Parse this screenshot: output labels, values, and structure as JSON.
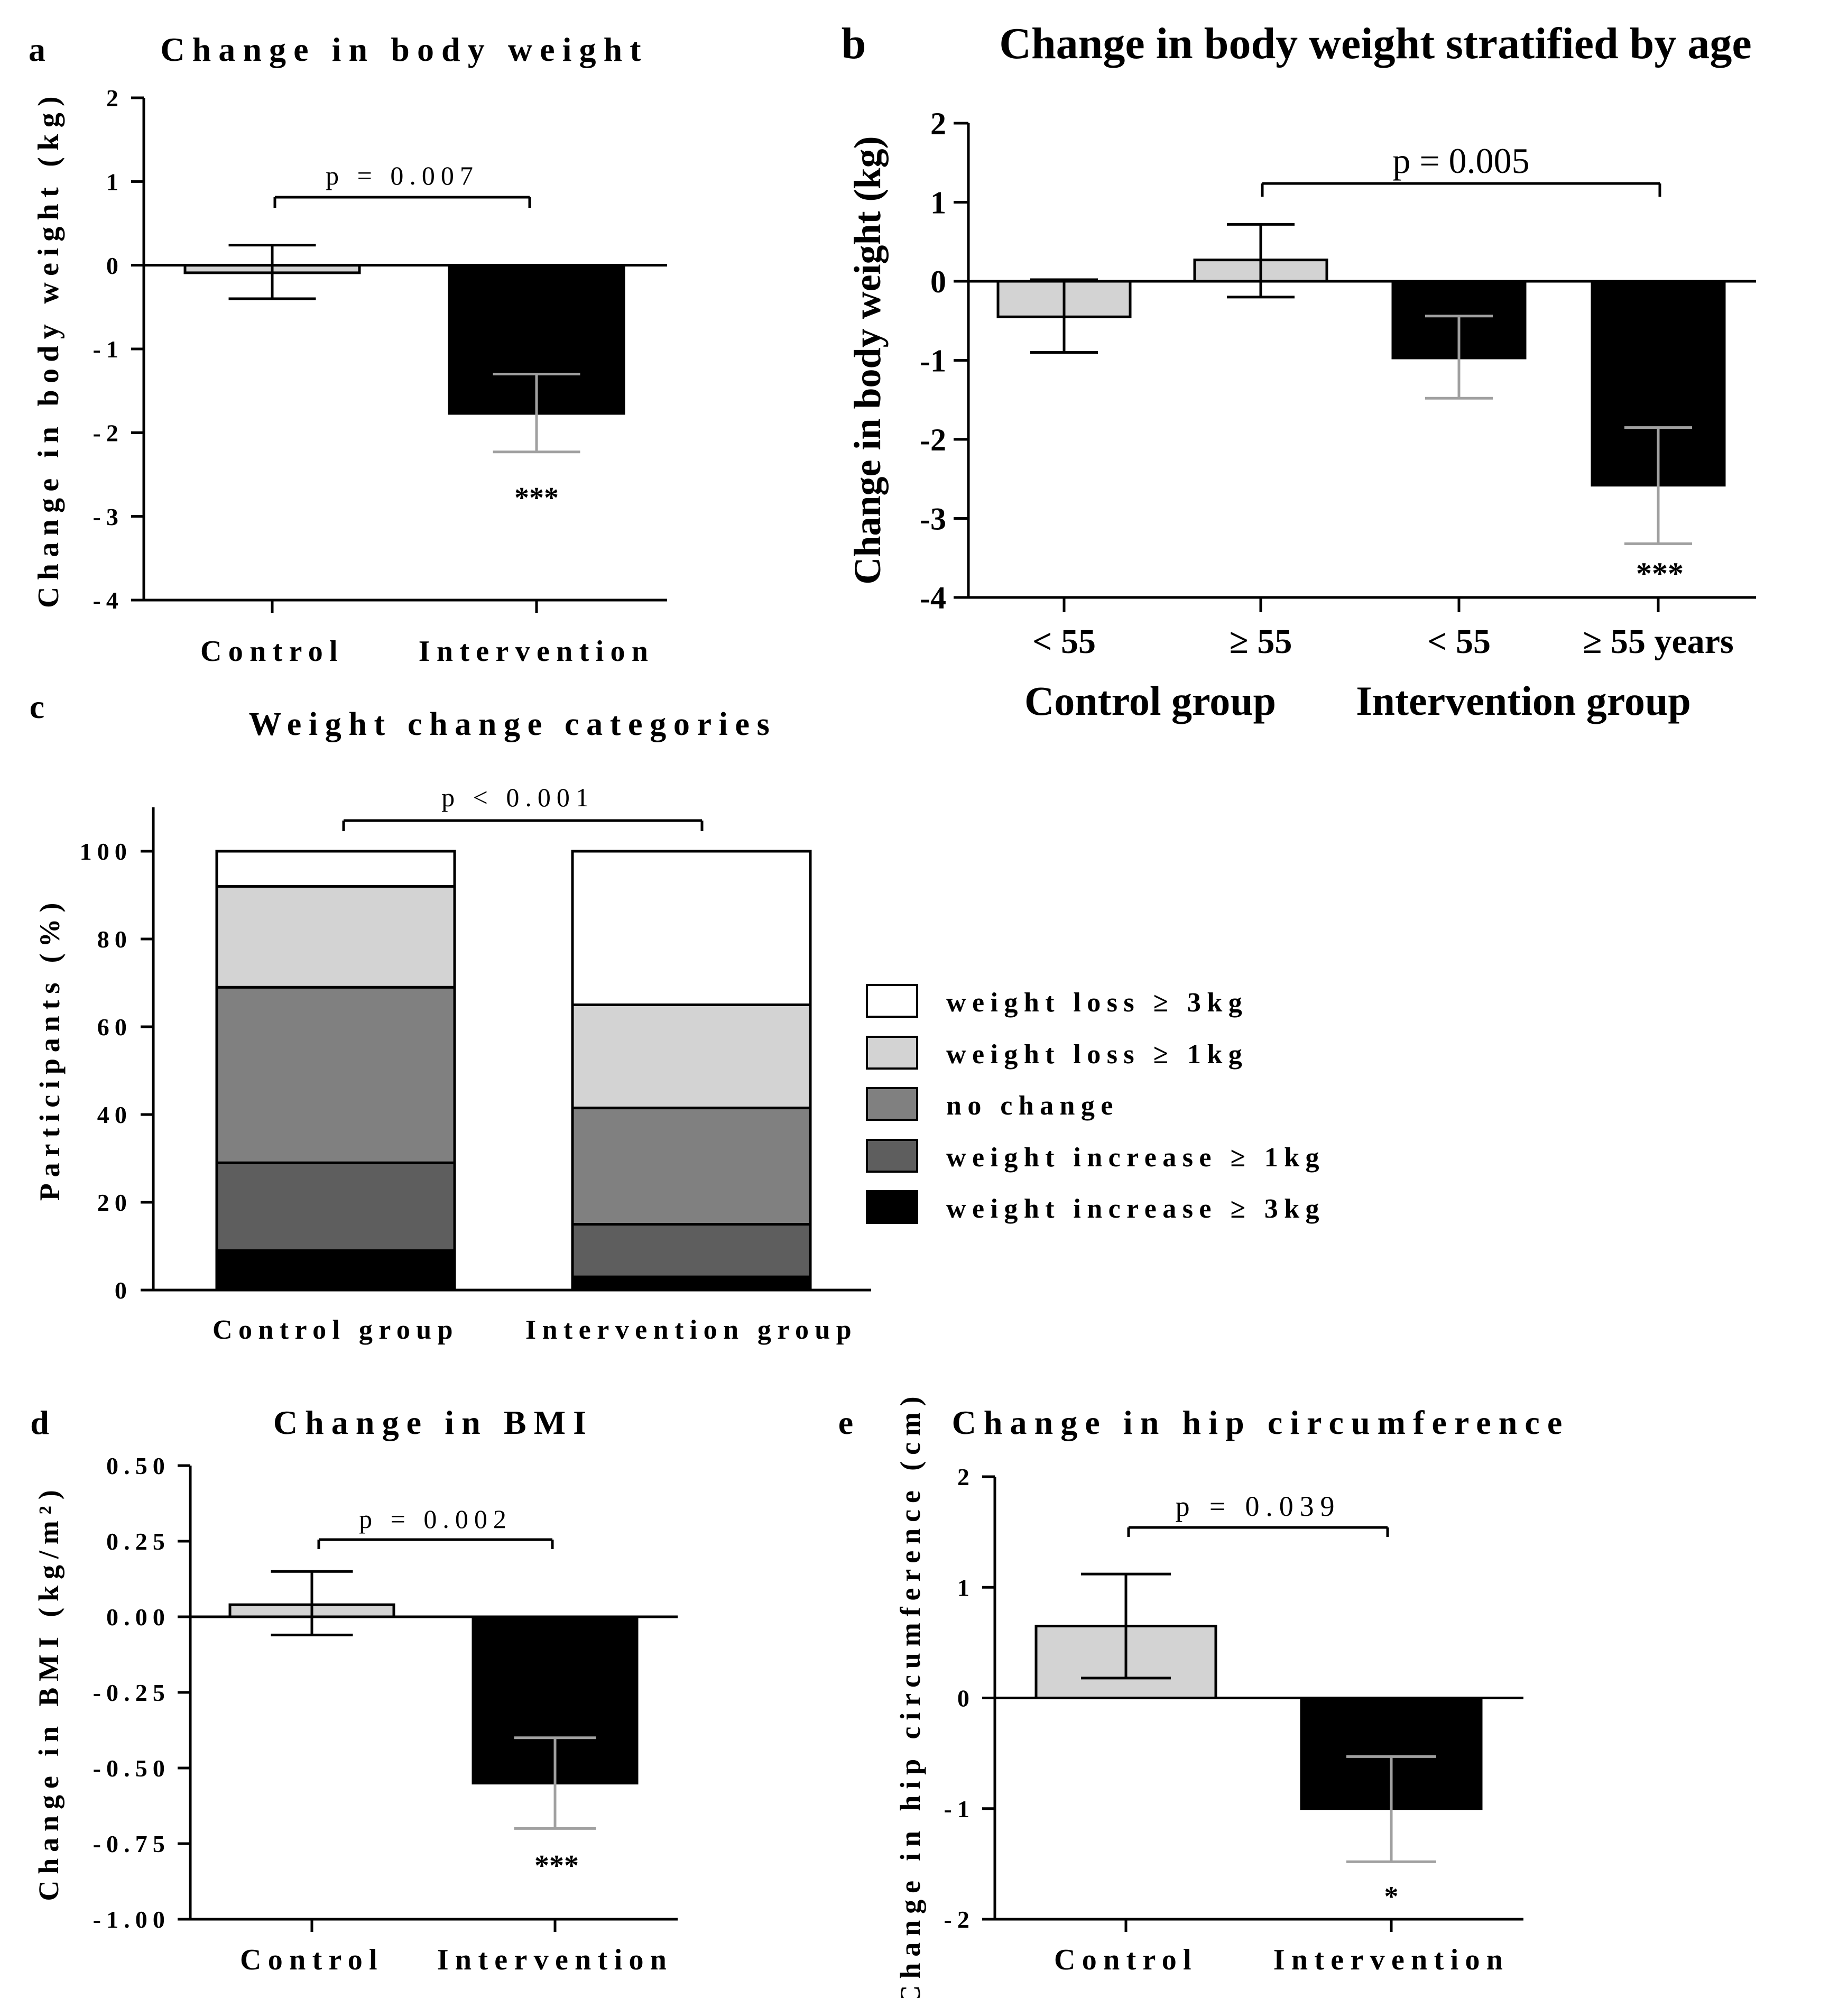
{
  "figure": {
    "panels": {
      "a": {
        "letter": "a",
        "significance": "***"
      },
      "b": {
        "letter": "b",
        "significance": "***",
        "group_labels": [
          "Control group",
          "Intervention group"
        ]
      },
      "c": {
        "letter": "c"
      },
      "d": {
        "letter": "d",
        "significance": "***"
      },
      "e": {
        "letter": "e",
        "significance": "*"
      }
    }
  },
  "colors": {
    "control_bar": "#d3d3d3",
    "intervention_bar": "#000000",
    "control_errorbar": "#000000",
    "intervention_errorbar": "#a0a0a0",
    "weight_loss_3kg": "#ffffff",
    "weight_loss_1kg": "#d3d3d3",
    "no_change": "#808080",
    "weight_increase_1kg": "#5e5e5e",
    "weight_increase_3kg": "#000000"
  },
  "chart_data": [
    {
      "panel": "a",
      "type": "bar",
      "title": "Change in body weight",
      "xlabel": "",
      "ylabel": "Change in body weight (kg)",
      "ylim": [
        -4,
        2
      ],
      "yticks": [
        2,
        1,
        0,
        -1,
        -2,
        -3,
        -4
      ],
      "ytick_labels": [
        "2",
        "1",
        "0",
        "-1",
        "-2",
        "-3",
        "-4"
      ],
      "categories": [
        "Control",
        "Intervention"
      ],
      "values": [
        -0.09,
        -1.77
      ],
      "error_low": [
        -0.4,
        -2.23
      ],
      "error_high": [
        0.24,
        -1.3
      ],
      "annotation": "p = 0.007"
    },
    {
      "panel": "b",
      "type": "bar",
      "title": "Change in body weight stratified by age",
      "xlabel": "",
      "ylabel": "Change in body weight (kg)",
      "ylim": [
        -4,
        2
      ],
      "yticks": [
        2,
        1,
        0,
        -1,
        -2,
        -3,
        -4
      ],
      "ytick_labels": [
        "2",
        "1",
        "0",
        "-1",
        "-2",
        "-3",
        "-4"
      ],
      "categories": [
        "< 55",
        "≥ 55",
        "< 55",
        "≥ 55 years"
      ],
      "groups": [
        "control",
        "control",
        "intervention",
        "intervention"
      ],
      "values": [
        -0.45,
        0.27,
        -0.97,
        -2.58
      ],
      "error_low": [
        -0.9,
        -0.2,
        -1.48,
        -3.32
      ],
      "error_high": [
        0.02,
        0.72,
        -0.44,
        -1.85
      ],
      "annotation": "p = 0.005"
    },
    {
      "panel": "c",
      "type": "bar",
      "stacked": true,
      "title": "Weight change categories",
      "xlabel": "",
      "ylabel": "Participants (%)",
      "ylim": [
        0,
        110
      ],
      "yticks": [
        0,
        20,
        40,
        60,
        80,
        100
      ],
      "ytick_labels": [
        "0",
        "20",
        "40",
        "60",
        "80",
        "100"
      ],
      "categories": [
        "Control group",
        "Intervention group"
      ],
      "series": [
        {
          "name": "weight increase ≥ 3kg",
          "values": [
            9,
            3
          ]
        },
        {
          "name": "weight increase ≥ 1kg",
          "values": [
            20,
            12
          ]
        },
        {
          "name": "no change",
          "values": [
            40,
            26.5
          ]
        },
        {
          "name": "weight loss ≥ 1kg",
          "values": [
            23,
            23.5
          ]
        },
        {
          "name": "weight loss ≥ 3kg",
          "values": [
            8,
            35
          ]
        }
      ],
      "legend_order": [
        "weight loss ≥ 3kg",
        "weight loss ≥ 1kg",
        "no change",
        "weight increase ≥ 1kg",
        "weight increase ≥ 3kg"
      ],
      "legend_position": "right",
      "annotation": "p < 0.001"
    },
    {
      "panel": "d",
      "type": "bar",
      "title": "Change in BMI",
      "xlabel": "",
      "ylabel": "Change in BMI (kg/m²)",
      "ylim": [
        -1.0,
        0.5
      ],
      "yticks": [
        0.5,
        0.25,
        0.0,
        -0.25,
        -0.5,
        -0.75,
        -1.0
      ],
      "ytick_labels": [
        "0.50",
        "0.25",
        "0.00",
        "-0.25",
        "-0.50",
        "-0.75",
        "-1.00"
      ],
      "categories": [
        "Control",
        "Intervention"
      ],
      "values": [
        0.04,
        -0.55
      ],
      "error_low": [
        -0.06,
        -0.7
      ],
      "error_high": [
        0.15,
        -0.4
      ],
      "annotation": "p = 0.002"
    },
    {
      "panel": "e",
      "type": "bar",
      "title": "Change in hip circumference",
      "xlabel": "",
      "ylabel": "Change in hip circumference (cm)",
      "ylim": [
        -2,
        2
      ],
      "yticks": [
        2,
        1,
        0,
        -1,
        -2
      ],
      "ytick_labels": [
        "2",
        "1",
        "0",
        "-1",
        "-2"
      ],
      "categories": [
        "Control",
        "Intervention"
      ],
      "values": [
        0.65,
        -1.0
      ],
      "error_low": [
        0.18,
        -1.48
      ],
      "error_high": [
        1.12,
        -0.53
      ],
      "annotation": "p = 0.039"
    }
  ]
}
